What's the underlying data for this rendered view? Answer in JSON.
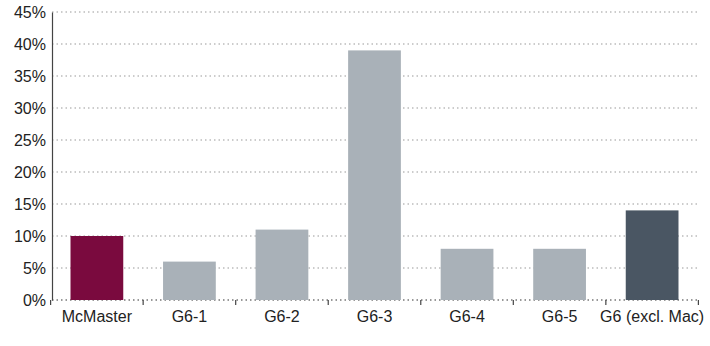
{
  "chart_data": {
    "type": "bar",
    "categories": [
      "McMaster",
      "G6-1",
      "G6-2",
      "G6-3",
      "G6-4",
      "G6-5",
      "G6 (excl. Mac)"
    ],
    "values": [
      10,
      6,
      11,
      39,
      8,
      8,
      14
    ],
    "colors": [
      "#7a0a3e",
      "#a9b1b8",
      "#a9b1b8",
      "#a9b1b8",
      "#a9b1b8",
      "#a9b1b8",
      "#4a5663"
    ],
    "ylim": [
      0,
      45
    ],
    "yticks": [
      {
        "value": 0,
        "label": "0%"
      },
      {
        "value": 5,
        "label": "5%"
      },
      {
        "value": 10,
        "label": "10%"
      },
      {
        "value": 15,
        "label": "15%"
      },
      {
        "value": 20,
        "label": "20%"
      },
      {
        "value": 25,
        "label": "25%"
      },
      {
        "value": 30,
        "label": "30%"
      },
      {
        "value": 35,
        "label": "35%"
      },
      {
        "value": 40,
        "label": "40%"
      },
      {
        "value": 45,
        "label": "45%"
      }
    ],
    "grid": true
  }
}
